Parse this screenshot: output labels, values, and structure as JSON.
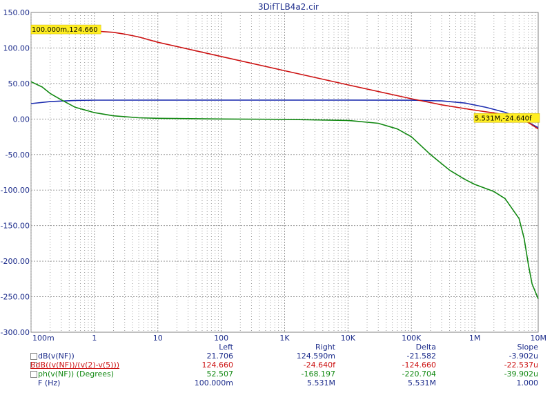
{
  "chart_data": {
    "type": "line",
    "title": "3DifTLB4a2.cir",
    "xscale": "log",
    "xlim": [
      0.1,
      10000000
    ],
    "ylim": [
      -300,
      150
    ],
    "grid": true,
    "x_tick_labels": [
      "100m",
      "1",
      "10",
      "100",
      "1K",
      "10K",
      "100K",
      "1M",
      "10M"
    ],
    "y_tick_labels": [
      "150.00",
      "100.00",
      "50.00",
      "0.00",
      "-50.00",
      "-100.00",
      "-150.00",
      "-200.00",
      "-250.00",
      "-300.00"
    ],
    "series": [
      {
        "name": "dB(v(NF))",
        "color": "#1f2fb0",
        "points": [
          [
            0.1,
            21.7
          ],
          [
            0.2,
            24.5
          ],
          [
            0.5,
            26.2
          ],
          [
            1,
            26.6
          ],
          [
            10,
            26.7
          ],
          [
            100,
            26.7
          ],
          [
            1000,
            26.7
          ],
          [
            10000,
            26.7
          ],
          [
            100000,
            26.5
          ],
          [
            300000,
            25.5
          ],
          [
            700000,
            22.5
          ],
          [
            1500000,
            16.5
          ],
          [
            3000000,
            9.5
          ],
          [
            5531000,
            0.0
          ],
          [
            10000000,
            -12.0
          ]
        ]
      },
      {
        "name": "BdB((v(NF))/(v(2)-v(5)))",
        "color": "#cc1111",
        "points": [
          [
            0.1,
            124.66
          ],
          [
            0.3,
            124.6
          ],
          [
            1,
            123.9
          ],
          [
            2,
            122.0
          ],
          [
            3,
            119.5
          ],
          [
            5,
            115.5
          ],
          [
            10,
            108.0
          ],
          [
            100,
            88.0
          ],
          [
            1000,
            68.0
          ],
          [
            10000,
            48.0
          ],
          [
            100000,
            28.5
          ],
          [
            300000,
            20.0
          ],
          [
            1000000,
            12.5
          ],
          [
            2000000,
            8.5
          ],
          [
            4000000,
            4.0
          ],
          [
            5531000,
            -0.0
          ],
          [
            7000000,
            -5.0
          ],
          [
            10000000,
            -14.0
          ]
        ]
      },
      {
        "name": "ph(v(NF)) (Degrees)",
        "color": "#118811",
        "points": [
          [
            0.1,
            52.5
          ],
          [
            0.15,
            45.0
          ],
          [
            0.2,
            36.0
          ],
          [
            0.3,
            27.0
          ],
          [
            0.5,
            16.5
          ],
          [
            1,
            9.0
          ],
          [
            2,
            4.5
          ],
          [
            5,
            1.8
          ],
          [
            10,
            1.0
          ],
          [
            100,
            0.0
          ],
          [
            1000,
            -0.5
          ],
          [
            10000,
            -2.0
          ],
          [
            30000,
            -6.0
          ],
          [
            60000,
            -14.0
          ],
          [
            100000,
            -25.0
          ],
          [
            200000,
            -50.0
          ],
          [
            400000,
            -72.0
          ],
          [
            700000,
            -85.0
          ],
          [
            1000000,
            -92.0
          ],
          [
            2000000,
            -102.0
          ],
          [
            3000000,
            -112.0
          ],
          [
            5000000,
            -140.0
          ],
          [
            6000000,
            -168.0
          ],
          [
            7000000,
            -205.0
          ],
          [
            8000000,
            -232.0
          ],
          [
            10000000,
            -253.0
          ]
        ]
      }
    ],
    "cursor_labels": [
      {
        "text": "100.000m,124.660",
        "x": 0.1,
        "y": 124.66
      },
      {
        "text": "5.531M,-24.640f",
        "x": 5531000,
        "y": 0
      }
    ]
  },
  "table": {
    "headers": [
      "Left",
      "Right",
      "Delta",
      "Slope"
    ],
    "rows": [
      {
        "name": "dB(v(NF))",
        "color": "#1a2a8a",
        "values": [
          "21.706",
          "124.590m",
          "-21.582",
          "-3.902u"
        ]
      },
      {
        "name": "BdB((v(NF))/(v(2)-v(5)))",
        "color": "#cc1111",
        "values": [
          "124.660",
          "-24.640f",
          "-124.660",
          "-22.537u"
        ]
      },
      {
        "name": "ph(v(NF)) (Degrees)",
        "color": "#118811",
        "values": [
          "52.507",
          "-168.197",
          "-220.704",
          "-39.902u"
        ]
      },
      {
        "name": "F (Hz)",
        "color": "#1a2a8a",
        "values": [
          "100.000m",
          "5.531M",
          "5.531M",
          "1.000"
        ]
      }
    ]
  }
}
